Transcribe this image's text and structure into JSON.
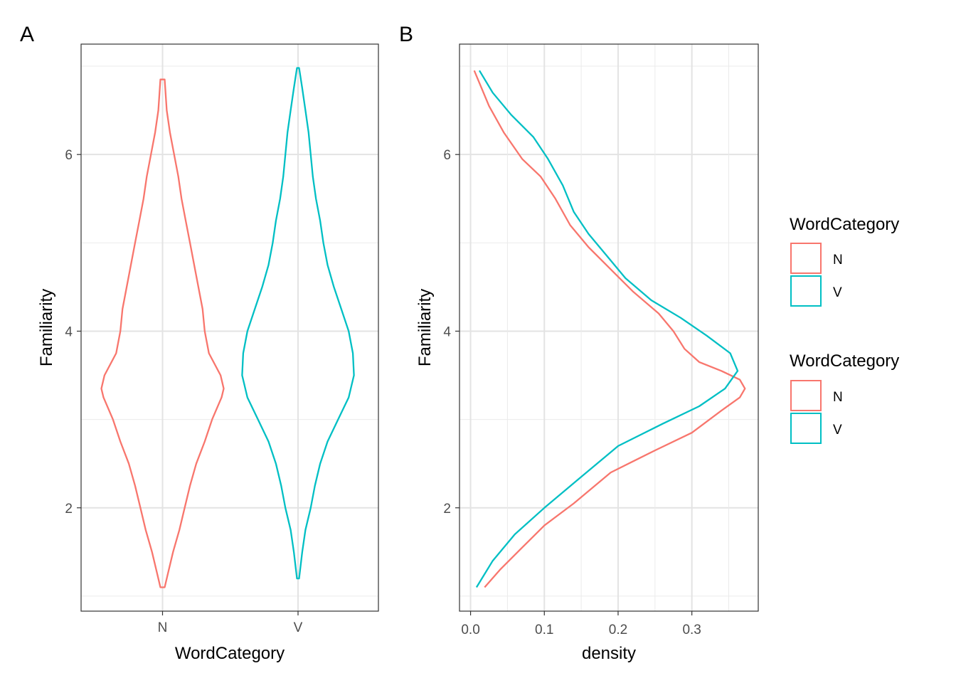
{
  "chart_data": [
    {
      "panel_tag": "A",
      "type": "violin",
      "xlabel": "WordCategory",
      "ylabel": "Familiarity",
      "categories": [
        "N",
        "V"
      ],
      "yticks": [
        2,
        4,
        6
      ],
      "ylim": [
        0.83,
        7.25
      ],
      "grid": true,
      "colors": {
        "N": "#F8766D",
        "V": "#00BFC4"
      },
      "series": [
        {
          "name": "N",
          "ymin": 1.1,
          "ymax": 6.85,
          "profile": [
            [
              1.1,
              0.02
            ],
            [
              1.25,
              0.05
            ],
            [
              1.5,
              0.1
            ],
            [
              1.75,
              0.16
            ],
            [
              2.0,
              0.21
            ],
            [
              2.25,
              0.26
            ],
            [
              2.5,
              0.32
            ],
            [
              2.75,
              0.4
            ],
            [
              3.0,
              0.47
            ],
            [
              3.25,
              0.56
            ],
            [
              3.35,
              0.58
            ],
            [
              3.5,
              0.55
            ],
            [
              3.75,
              0.44
            ],
            [
              4.0,
              0.4
            ],
            [
              4.25,
              0.38
            ],
            [
              4.5,
              0.34
            ],
            [
              4.75,
              0.3
            ],
            [
              5.0,
              0.26
            ],
            [
              5.25,
              0.22
            ],
            [
              5.5,
              0.18
            ],
            [
              5.75,
              0.15
            ],
            [
              6.0,
              0.11
            ],
            [
              6.25,
              0.07
            ],
            [
              6.5,
              0.04
            ],
            [
              6.85,
              0.02
            ]
          ]
        },
        {
          "name": "V",
          "ymin": 1.2,
          "ymax": 6.98,
          "profile": [
            [
              1.2,
              0.01
            ],
            [
              1.5,
              0.04
            ],
            [
              1.75,
              0.07
            ],
            [
              2.0,
              0.12
            ],
            [
              2.25,
              0.16
            ],
            [
              2.5,
              0.21
            ],
            [
              2.75,
              0.28
            ],
            [
              3.0,
              0.38
            ],
            [
              3.25,
              0.48
            ],
            [
              3.5,
              0.53
            ],
            [
              3.75,
              0.52
            ],
            [
              4.0,
              0.48
            ],
            [
              4.25,
              0.41
            ],
            [
              4.5,
              0.34
            ],
            [
              4.75,
              0.28
            ],
            [
              5.0,
              0.24
            ],
            [
              5.25,
              0.21
            ],
            [
              5.5,
              0.17
            ],
            [
              5.75,
              0.14
            ],
            [
              6.0,
              0.12
            ],
            [
              6.25,
              0.1
            ],
            [
              6.5,
              0.07
            ],
            [
              6.75,
              0.04
            ],
            [
              6.98,
              0.01
            ]
          ]
        }
      ]
    },
    {
      "panel_tag": "B",
      "type": "line",
      "xlabel": "density",
      "ylabel": "Familiarity",
      "xticks": [
        "0.0",
        "0.1",
        "0.2",
        "0.3"
      ],
      "xlim": [
        -0.015,
        0.39
      ],
      "yticks": [
        2,
        4,
        6
      ],
      "ylim": [
        0.83,
        7.25
      ],
      "grid": true,
      "series": [
        {
          "name": "N",
          "color": "#F8766D",
          "points": [
            [
              0.019,
              1.1
            ],
            [
              0.04,
              1.3
            ],
            [
              0.07,
              1.55
            ],
            [
              0.1,
              1.8
            ],
            [
              0.14,
              2.05
            ],
            [
              0.19,
              2.4
            ],
            [
              0.25,
              2.65
            ],
            [
              0.3,
              2.85
            ],
            [
              0.34,
              3.1
            ],
            [
              0.365,
              3.25
            ],
            [
              0.372,
              3.35
            ],
            [
              0.365,
              3.45
            ],
            [
              0.34,
              3.55
            ],
            [
              0.31,
              3.65
            ],
            [
              0.29,
              3.8
            ],
            [
              0.275,
              4.0
            ],
            [
              0.255,
              4.2
            ],
            [
              0.22,
              4.45
            ],
            [
              0.19,
              4.7
            ],
            [
              0.16,
              4.95
            ],
            [
              0.135,
              5.2
            ],
            [
              0.115,
              5.5
            ],
            [
              0.095,
              5.75
            ],
            [
              0.07,
              5.95
            ],
            [
              0.045,
              6.25
            ],
            [
              0.025,
              6.55
            ],
            [
              0.005,
              6.95
            ]
          ]
        },
        {
          "name": "V",
          "color": "#00BFC4",
          "points": [
            [
              0.008,
              1.1
            ],
            [
              0.03,
              1.4
            ],
            [
              0.06,
              1.7
            ],
            [
              0.1,
              2.0
            ],
            [
              0.15,
              2.35
            ],
            [
              0.2,
              2.7
            ],
            [
              0.26,
              2.95
            ],
            [
              0.31,
              3.15
            ],
            [
              0.345,
              3.35
            ],
            [
              0.362,
              3.55
            ],
            [
              0.352,
              3.75
            ],
            [
              0.32,
              3.95
            ],
            [
              0.285,
              4.15
            ],
            [
              0.245,
              4.35
            ],
            [
              0.21,
              4.6
            ],
            [
              0.185,
              4.85
            ],
            [
              0.16,
              5.1
            ],
            [
              0.14,
              5.35
            ],
            [
              0.125,
              5.65
            ],
            [
              0.105,
              5.95
            ],
            [
              0.085,
              6.2
            ],
            [
              0.055,
              6.45
            ],
            [
              0.03,
              6.7
            ],
            [
              0.012,
              6.95
            ]
          ]
        }
      ]
    }
  ],
  "legends": [
    {
      "title": "WordCategory",
      "items": [
        {
          "label": "N",
          "color": "#F8766D"
        },
        {
          "label": "V",
          "color": "#00BFC4"
        }
      ]
    },
    {
      "title": "WordCategory",
      "items": [
        {
          "label": "N",
          "color": "#F8766D"
        },
        {
          "label": "V",
          "color": "#00BFC4"
        }
      ]
    }
  ]
}
